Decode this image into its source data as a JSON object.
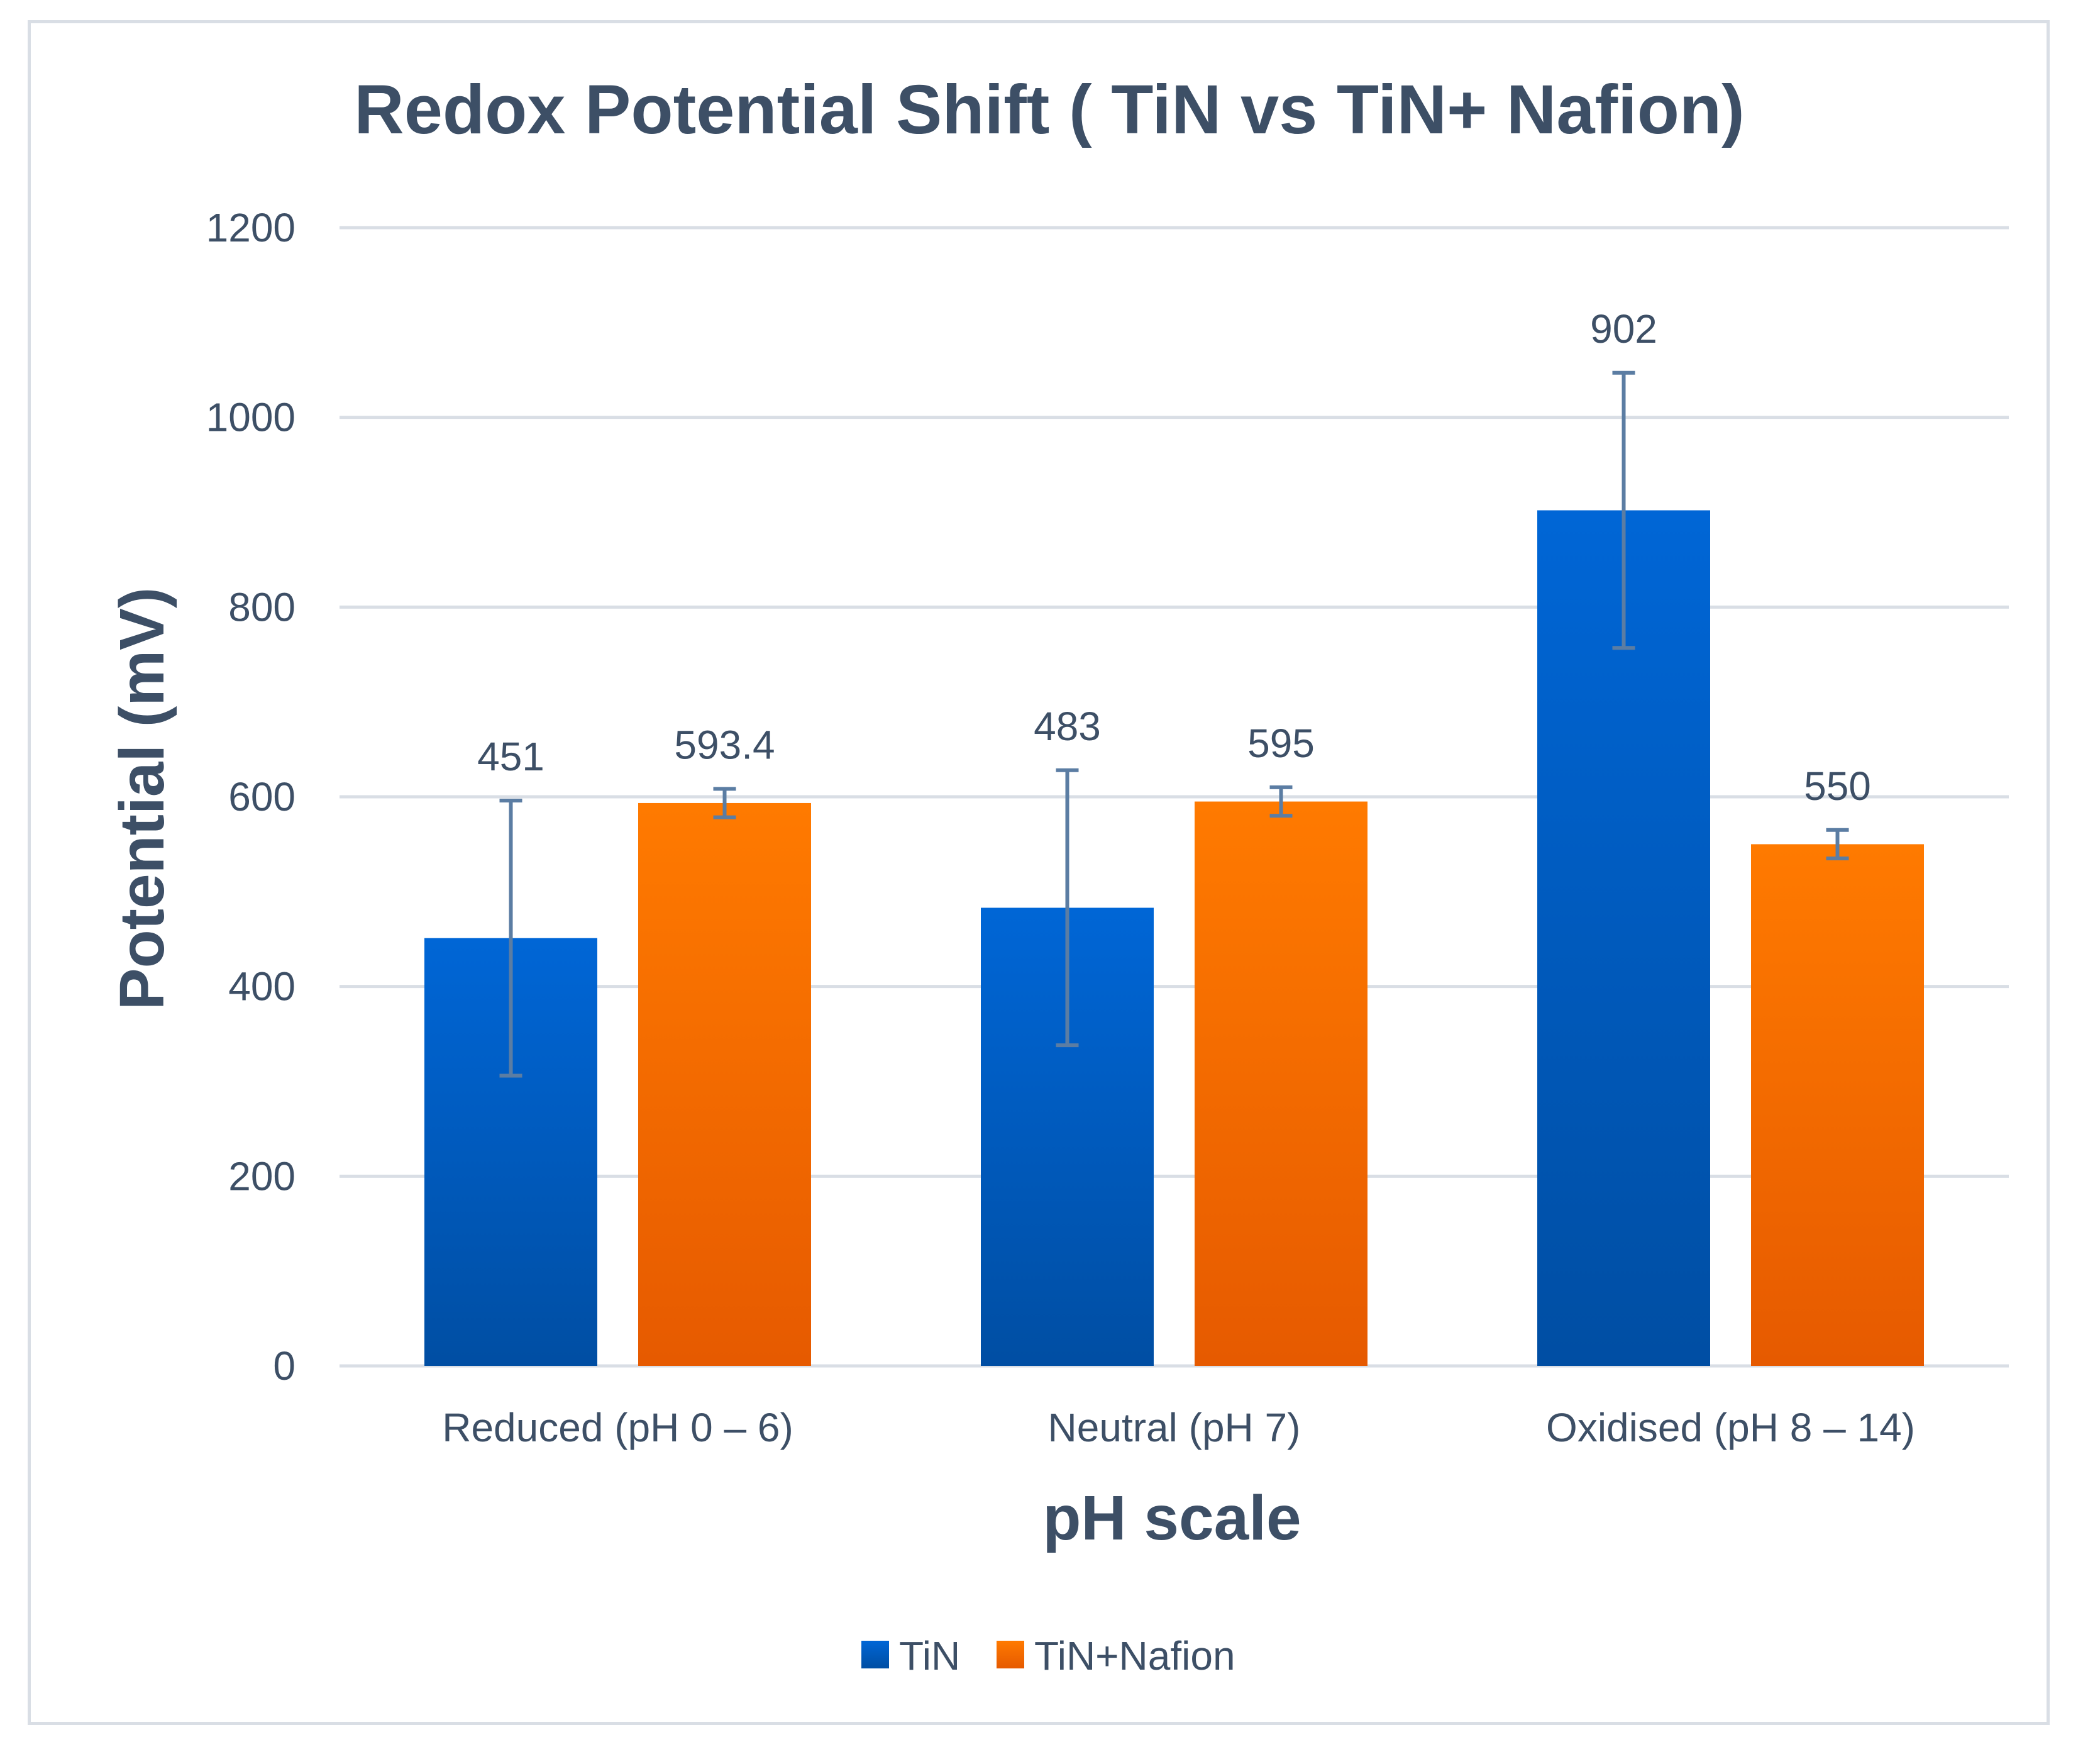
{
  "chart_data": {
    "type": "bar",
    "title": "Redox Potential Shift ( TiN vs TiN+ Nafion)",
    "xlabel": "pH scale",
    "ylabel": "Potential (mV)",
    "categories": [
      "Reduced (pH 0 – 6)",
      "Neutral (pH 7)",
      "Oxidised (pH 8 – 14)"
    ],
    "ylim": [
      0,
      1200
    ],
    "yticks": [
      0,
      200,
      400,
      600,
      800,
      1000,
      1200
    ],
    "grid": true,
    "legend_position": "bottom",
    "series": [
      {
        "name": "TiN",
        "color": "#0066d6",
        "color_dark": "#004ea3",
        "values": [
          451,
          483,
          902
        ],
        "value_labels": [
          "451",
          "483",
          "902"
        ],
        "errors": [
          145,
          145,
          145
        ]
      },
      {
        "name": "TiN+Nafion",
        "color": "#ff7a00",
        "color_dark": "#e65a00",
        "values": [
          593.4,
          595,
          550
        ],
        "value_labels": [
          "593.4",
          "595",
          "550"
        ],
        "errors": [
          15,
          15,
          15
        ]
      }
    ]
  }
}
